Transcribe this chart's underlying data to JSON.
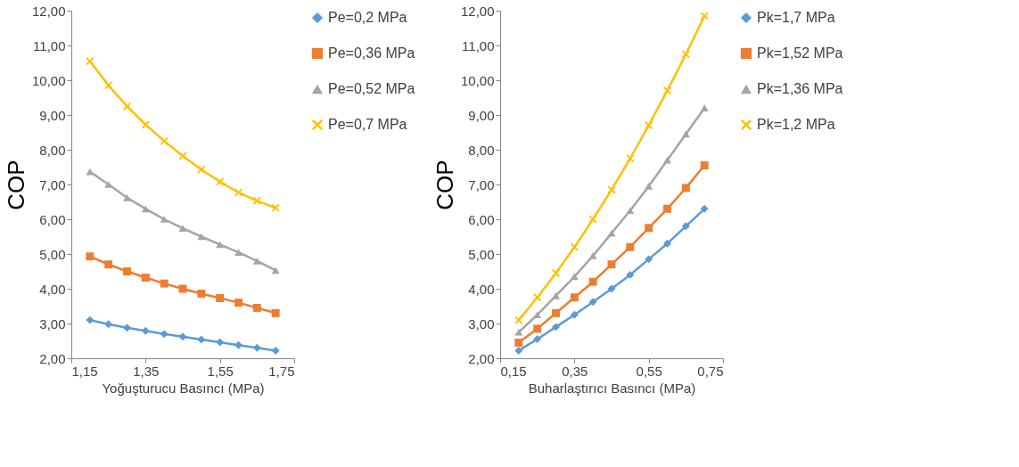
{
  "chart_data": [
    {
      "type": "line",
      "xlabel": "Yoğuşturucu Basıncı (MPa)",
      "ylabel": "COP",
      "x": [
        1.2,
        1.25,
        1.3,
        1.35,
        1.4,
        1.45,
        1.5,
        1.55,
        1.6,
        1.65,
        1.7
      ],
      "xlim": [
        1.15,
        1.75
      ],
      "xticks": [
        {
          "value": 1.15,
          "label": "1,15"
        },
        {
          "value": 1.35,
          "label": "1,35"
        },
        {
          "value": 1.55,
          "label": "1,55"
        },
        {
          "value": 1.75,
          "label": "1,75"
        }
      ],
      "ylim": [
        2,
        12
      ],
      "yticks": [
        {
          "value": 2,
          "label": "2,00"
        },
        {
          "value": 3,
          "label": "3,00"
        },
        {
          "value": 4,
          "label": "4,00"
        },
        {
          "value": 5,
          "label": "5,00"
        },
        {
          "value": 6,
          "label": "6,00"
        },
        {
          "value": 7,
          "label": "7,00"
        },
        {
          "value": 8,
          "label": "8,00"
        },
        {
          "value": 9,
          "label": "9,00"
        },
        {
          "value": 10,
          "label": "10,00"
        },
        {
          "value": 11,
          "label": "11,00"
        },
        {
          "value": 12,
          "label": "12,00"
        }
      ],
      "grid": false,
      "legend": "right",
      "series": [
        {
          "name": "Pe=0,2 MPa",
          "color": "#5b9bd5",
          "marker": "diamond",
          "values": [
            3.1,
            2.98,
            2.88,
            2.79,
            2.7,
            2.62,
            2.54,
            2.46,
            2.38,
            2.3,
            2.22
          ]
        },
        {
          "name": "Pe=0,36 MPa",
          "color": "#ed7d31",
          "marker": "square",
          "values": [
            4.93,
            4.7,
            4.5,
            4.32,
            4.15,
            4.0,
            3.86,
            3.73,
            3.6,
            3.45,
            3.3
          ]
        },
        {
          "name": "Pe=0,52 MPa",
          "color": "#a5a5a5",
          "marker": "triangle",
          "values": [
            7.37,
            7.0,
            6.62,
            6.3,
            6.0,
            5.74,
            5.5,
            5.27,
            5.05,
            4.8,
            4.53
          ]
        },
        {
          "name": "Pe=0,7 MPa",
          "color": "#ffc000",
          "marker": "cross",
          "values": [
            10.55,
            9.85,
            9.25,
            8.72,
            8.25,
            7.82,
            7.43,
            7.08,
            6.77,
            6.53,
            6.33
          ]
        }
      ]
    },
    {
      "type": "line",
      "xlabel": "Buharlaştırıcı Basıncı (MPa)",
      "ylabel": "COP",
      "x": [
        0.2,
        0.25,
        0.3,
        0.35,
        0.4,
        0.45,
        0.5,
        0.55,
        0.6,
        0.65,
        0.7
      ],
      "xlim": [
        0.15,
        0.75
      ],
      "xticks": [
        {
          "value": 0.15,
          "label": "0,15"
        },
        {
          "value": 0.35,
          "label": "0,35"
        },
        {
          "value": 0.55,
          "label": "0,55"
        },
        {
          "value": 0.75,
          "label": "0,75"
        }
      ],
      "ylim": [
        2,
        12
      ],
      "yticks": [
        {
          "value": 2,
          "label": "2,00"
        },
        {
          "value": 3,
          "label": "3,00"
        },
        {
          "value": 4,
          "label": "4,00"
        },
        {
          "value": 5,
          "label": "5,00"
        },
        {
          "value": 6,
          "label": "6,00"
        },
        {
          "value": 7,
          "label": "7,00"
        },
        {
          "value": 8,
          "label": "8,00"
        },
        {
          "value": 9,
          "label": "9,00"
        },
        {
          "value": 10,
          "label": "10,00"
        },
        {
          "value": 11,
          "label": "11,00"
        },
        {
          "value": 12,
          "label": "12,00"
        }
      ],
      "grid": false,
      "legend": "right",
      "series": [
        {
          "name": "Pk=1,7 MPa",
          "color": "#5b9bd5",
          "marker": "diamond",
          "values": [
            2.22,
            2.55,
            2.9,
            3.25,
            3.62,
            4.0,
            4.4,
            4.85,
            5.3,
            5.8,
            6.3
          ]
        },
        {
          "name": "Pk=1,52 MPa",
          "color": "#ed7d31",
          "marker": "square",
          "values": [
            2.45,
            2.85,
            3.3,
            3.75,
            4.2,
            4.7,
            5.2,
            5.75,
            6.3,
            6.9,
            7.55
          ]
        },
        {
          "name": "Pk=1,36 MPa",
          "color": "#a5a5a5",
          "marker": "triangle",
          "values": [
            2.75,
            3.25,
            3.8,
            4.35,
            4.95,
            5.6,
            6.25,
            6.95,
            7.7,
            8.45,
            9.2
          ]
        },
        {
          "name": "Pk=1,2 MPa",
          "color": "#ffc000",
          "marker": "cross",
          "values": [
            3.1,
            3.75,
            4.45,
            5.2,
            6.0,
            6.85,
            7.75,
            8.7,
            9.7,
            10.75,
            11.85
          ]
        }
      ]
    }
  ]
}
